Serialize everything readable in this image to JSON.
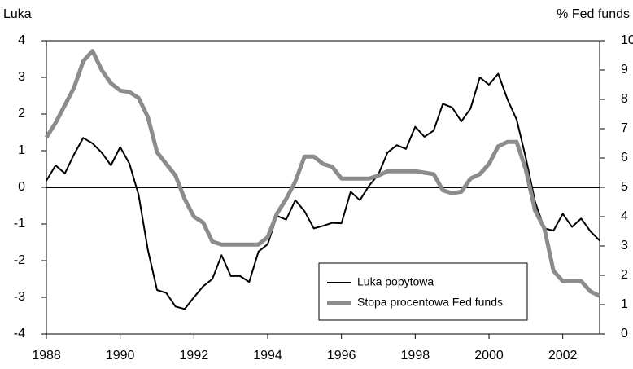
{
  "chart_data": {
    "type": "line",
    "ylabel": "Luka",
    "y2label": "% Fed funds",
    "x": [
      1988,
      1988.25,
      1988.5,
      1988.75,
      1989,
      1989.25,
      1989.5,
      1989.75,
      1990,
      1990.25,
      1990.5,
      1990.75,
      1991,
      1991.25,
      1991.5,
      1991.75,
      1992,
      1992.25,
      1992.5,
      1992.75,
      1993,
      1993.25,
      1993.5,
      1993.75,
      1994,
      1994.25,
      1994.5,
      1994.75,
      1995,
      1995.25,
      1995.5,
      1995.75,
      1996,
      1996.25,
      1996.5,
      1996.75,
      1997,
      1997.25,
      1997.5,
      1997.75,
      1998,
      1998.25,
      1998.5,
      1998.75,
      1999,
      1999.25,
      1999.5,
      1999.75,
      2000,
      2000.25,
      2000.5,
      2000.75,
      2001,
      2001.25,
      2001.5,
      2001.75,
      2002,
      2002.25,
      2002.5,
      2002.75,
      2003
    ],
    "series": [
      {
        "name": "Luka popytowa",
        "color": "#000000",
        "axis": "y",
        "values": [
          0.18,
          0.6,
          0.38,
          0.9,
          1.35,
          1.2,
          0.95,
          0.6,
          1.1,
          0.65,
          -0.2,
          -1.7,
          -2.8,
          -2.88,
          -3.25,
          -3.32,
          -3.0,
          -2.7,
          -2.5,
          -1.85,
          -2.42,
          -2.42,
          -2.58,
          -1.75,
          -1.55,
          -0.78,
          -0.88,
          -0.35,
          -0.65,
          -1.12,
          -1.05,
          -0.97,
          -0.98,
          -0.12,
          -0.35,
          0.05,
          0.35,
          0.95,
          1.15,
          1.05,
          1.65,
          1.38,
          1.55,
          2.28,
          2.18,
          1.8,
          2.15,
          3.0,
          2.8,
          3.1,
          2.4,
          1.85,
          0.8,
          -0.4,
          -1.12,
          -1.18,
          -0.72,
          -1.08,
          -0.85,
          -1.2,
          -1.45
        ]
      },
      {
        "name": "Stopa procentowa Fed funds",
        "color": "#8c8c8c",
        "axis": "y2",
        "values": [
          6.7,
          7.2,
          7.8,
          8.4,
          9.3,
          9.65,
          9.0,
          8.55,
          8.3,
          8.25,
          8.05,
          7.4,
          6.2,
          5.8,
          5.4,
          4.6,
          4.0,
          3.8,
          3.15,
          3.05,
          3.05,
          3.05,
          3.05,
          3.05,
          3.3,
          4.1,
          4.6,
          5.2,
          6.05,
          6.05,
          5.8,
          5.7,
          5.3,
          5.3,
          5.3,
          5.3,
          5.4,
          5.55,
          5.55,
          5.55,
          5.55,
          5.5,
          5.45,
          4.9,
          4.8,
          4.85,
          5.3,
          5.45,
          5.8,
          6.4,
          6.55,
          6.55,
          5.6,
          4.2,
          3.6,
          2.15,
          1.8,
          1.8,
          1.8,
          1.45,
          1.3
        ]
      }
    ],
    "xlim": [
      1988,
      2003
    ],
    "xticks": [
      1988,
      1990,
      1992,
      1994,
      1996,
      1998,
      2000,
      2002
    ],
    "ylim": [
      -4,
      4
    ],
    "yticks": [
      -4,
      -3,
      -2,
      -1,
      0,
      1,
      2,
      3,
      4
    ],
    "y2lim": [
      0,
      10
    ],
    "y2ticks": [
      0,
      1,
      2,
      3,
      4,
      5,
      6,
      7,
      8,
      9,
      10
    ],
    "legend": "lower right"
  }
}
